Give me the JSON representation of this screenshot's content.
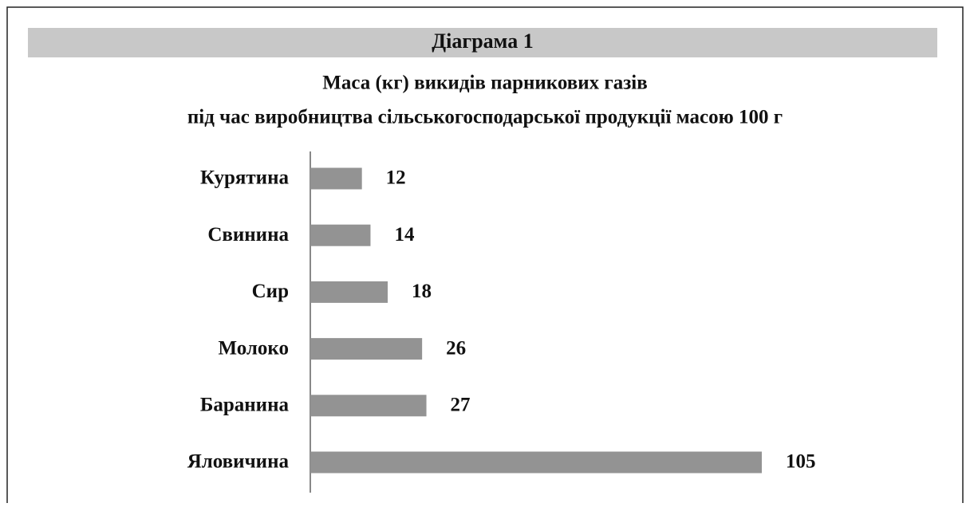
{
  "chart_data": {
    "type": "bar",
    "orientation": "horizontal",
    "header": "Діаграма 1",
    "title": [
      "Маса (кг) викидів парникових газів",
      "під час виробництва сільськогосподарської продукції масою 100 г"
    ],
    "categories": [
      "Курятина",
      "Свинина",
      "Сир",
      "Молоко",
      "Баранина",
      "Яловичина"
    ],
    "values": [
      12,
      14,
      18,
      26,
      27,
      105
    ],
    "color": "#939393"
  }
}
